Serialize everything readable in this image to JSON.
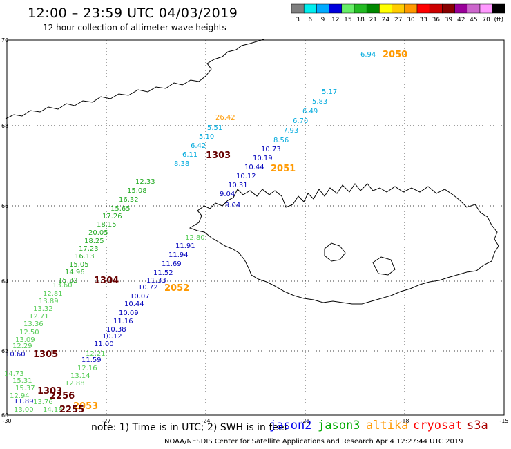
{
  "header": {
    "title": "12:00 – 23:59 UTC 04/03/2019",
    "subtitle": "12 hour collection of altimeter wave heights"
  },
  "colorbar": {
    "colors": [
      "#7f7f7f",
      "#00eeee",
      "#00aaff",
      "#0000dd",
      "#66ee66",
      "#22bb22",
      "#008800",
      "#ffff00",
      "#ffcc00",
      "#ff9900",
      "#ff0000",
      "#cc0000",
      "#880000",
      "#990099",
      "#cc66cc",
      "#ff99ff",
      "#000000"
    ],
    "labels": [
      "3",
      "6",
      "9",
      "12",
      "15",
      "18",
      "21",
      "24",
      "27",
      "30",
      "33",
      "36",
      "39",
      "42",
      "45",
      "70",
      "(ft)"
    ]
  },
  "axes": {
    "x_ticks": [
      "-30",
      "-27",
      "-24",
      "-21",
      "-18",
      "-15"
    ],
    "y_ticks": [
      "70",
      "68",
      "66",
      "64",
      "62",
      "60"
    ]
  },
  "tracks": [
    {
      "satellite": "jason2",
      "color": "#00aadd",
      "labels": [
        "6.94",
        "5.17",
        "5.83",
        "6.49",
        "6.70",
        "7.93",
        "8.56",
        "5.51",
        "5.10",
        "6.42",
        "6.11",
        "8.38"
      ]
    },
    {
      "satellite": "jason2",
      "color": "#0000bb",
      "labels": [
        "10.73",
        "10.19",
        "10.44",
        "10.12",
        "10.31",
        "9.04",
        "11.91",
        "11.94",
        "11.69",
        "11.52",
        "11.33",
        "10.72",
        "10.07",
        "10.44",
        "10.09",
        "11.16",
        "10.38",
        "10.12",
        "11.00",
        "11.59",
        "10.60",
        "11.89",
        "9.04"
      ]
    },
    {
      "satellite": "jason3",
      "color": "#22aa22",
      "labels": [
        "12.33",
        "15.08",
        "16.32",
        "15.65",
        "17.26",
        "18.15",
        "20.05",
        "18.25",
        "17.23",
        "16.13",
        "15.05",
        "14.96",
        "15.32"
      ]
    },
    {
      "satellite": "jason3",
      "color": "#55cc55",
      "labels": [
        "12.80",
        "13.60",
        "12.81",
        "13.89",
        "13.32",
        "12.71",
        "13.36",
        "12.50",
        "13.09",
        "12.29",
        "12.21",
        "12.16",
        "13.14",
        "12.88",
        "14.73",
        "15.31",
        "15.37",
        "12.94",
        "13.76",
        "14.18",
        "13.00"
      ]
    },
    {
      "satellite": "altika",
      "color": "#ff9900",
      "labels": [
        "26.42"
      ]
    }
  ],
  "time_labels": [
    {
      "text": "2050",
      "color": "#ff9900"
    },
    {
      "text": "2051",
      "color": "#ff9900"
    },
    {
      "text": "2052",
      "color": "#ff9900"
    },
    {
      "text": "2053",
      "color": "#ff9900"
    },
    {
      "text": "1303",
      "color": "#660000"
    },
    {
      "text": "1304",
      "color": "#660000"
    },
    {
      "text": "1305",
      "color": "#660000"
    },
    {
      "text": "1303",
      "color": "#660000"
    },
    {
      "text": "2256",
      "color": "#660000"
    },
    {
      "text": "2255",
      "color": "#660000"
    }
  ],
  "footer": {
    "note": "note:  1) Time is in UTC; 2) SWH is in feet",
    "credit": "NOAA/NESDIS Center for Satellite Applications and Research    Apr  4 12:27:44 UTC 2019",
    "legend": [
      {
        "name": "jason2",
        "color": "#0000ee"
      },
      {
        "name": "jason3",
        "color": "#00aa00"
      },
      {
        "name": "altika",
        "color": "#ff9900"
      },
      {
        "name": "cryosat",
        "color": "#ff0000"
      },
      {
        "name": "s3a",
        "color": "#aa0000"
      }
    ]
  }
}
